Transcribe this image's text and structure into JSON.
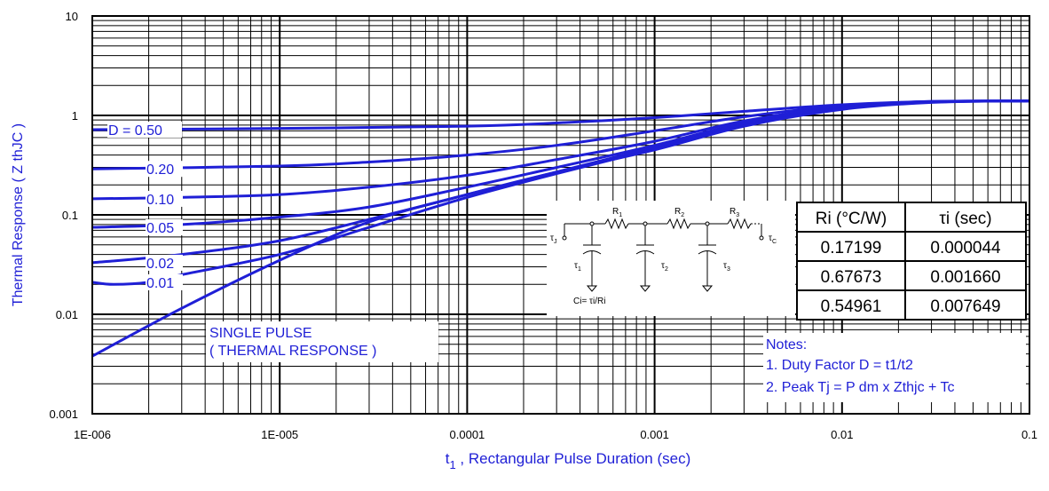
{
  "chart_data": {
    "type": "line",
    "x_scale": "log",
    "y_scale": "log",
    "xlim": [
      1e-06,
      0.1
    ],
    "ylim": [
      0.001,
      10
    ],
    "grid": true,
    "xlabel_main": "t",
    "xlabel_sub": "1",
    "xlabel_rest": " , Rectangular Pulse Duration (sec)",
    "ylabel": "Thermal Response ( Z thJC )",
    "x_ticks": [
      {
        "value": 1e-06,
        "label": "1E-006"
      },
      {
        "value": 1e-05,
        "label": "1E-005"
      },
      {
        "value": 0.0001,
        "label": "0.0001"
      },
      {
        "value": 0.001,
        "label": "0.001"
      },
      {
        "value": 0.01,
        "label": "0.01"
      },
      {
        "value": 0.1,
        "label": "0.1"
      }
    ],
    "y_ticks": [
      {
        "value": 10,
        "label": "10"
      },
      {
        "value": 1,
        "label": "1"
      },
      {
        "value": 0.1,
        "label": "0.1"
      },
      {
        "value": 0.01,
        "label": "0.01"
      },
      {
        "value": 0.001,
        "label": "0.001"
      }
    ],
    "series": [
      {
        "name": "D = 0.50",
        "points": [
          [
            1e-06,
            0.72
          ],
          [
            1e-05,
            0.74
          ],
          [
            0.0001,
            0.78
          ],
          [
            0.0003,
            0.84
          ],
          [
            0.001,
            0.95
          ],
          [
            0.003,
            1.1
          ],
          [
            0.01,
            1.28
          ],
          [
            0.03,
            1.38
          ],
          [
            0.1,
            1.4
          ]
        ]
      },
      {
        "name": "0.20",
        "points": [
          [
            1e-06,
            0.29
          ],
          [
            1e-05,
            0.31
          ],
          [
            3e-05,
            0.34
          ],
          [
            0.0001,
            0.4
          ],
          [
            0.0003,
            0.5
          ],
          [
            0.001,
            0.7
          ],
          [
            0.003,
            0.97
          ],
          [
            0.01,
            1.25
          ],
          [
            0.03,
            1.38
          ],
          [
            0.1,
            1.4
          ]
        ]
      },
      {
        "name": "0.10",
        "points": [
          [
            1e-06,
            0.145
          ],
          [
            3e-06,
            0.15
          ],
          [
            1e-05,
            0.16
          ],
          [
            3e-05,
            0.19
          ],
          [
            0.0001,
            0.25
          ],
          [
            0.0003,
            0.36
          ],
          [
            0.001,
            0.55
          ],
          [
            0.003,
            0.88
          ],
          [
            0.01,
            1.22
          ],
          [
            0.03,
            1.37
          ],
          [
            0.1,
            1.4
          ]
        ]
      },
      {
        "name": "0.05",
        "points": [
          [
            1e-06,
            0.075
          ],
          [
            3e-06,
            0.08
          ],
          [
            1e-05,
            0.095
          ],
          [
            3e-05,
            0.12
          ],
          [
            0.0001,
            0.19
          ],
          [
            0.0003,
            0.3
          ],
          [
            0.001,
            0.5
          ],
          [
            0.003,
            0.84
          ],
          [
            0.01,
            1.2
          ],
          [
            0.03,
            1.37
          ],
          [
            0.1,
            1.4
          ]
        ]
      },
      {
        "name": "0.02",
        "points": [
          [
            1e-06,
            0.033
          ],
          [
            3e-06,
            0.04
          ],
          [
            1e-05,
            0.055
          ],
          [
            3e-05,
            0.09
          ],
          [
            0.0001,
            0.16
          ],
          [
            0.0003,
            0.27
          ],
          [
            0.001,
            0.48
          ],
          [
            0.003,
            0.82
          ],
          [
            0.01,
            1.18
          ],
          [
            0.03,
            1.36
          ],
          [
            0.1,
            1.4
          ]
        ]
      },
      {
        "name": "0.01",
        "points": [
          [
            1e-06,
            0.021
          ],
          [
            1.3e-06,
            0.02
          ],
          [
            2e-06,
            0.021
          ],
          [
            3e-06,
            0.025
          ],
          [
            1e-05,
            0.04
          ],
          [
            3e-05,
            0.075
          ],
          [
            0.0001,
            0.15
          ],
          [
            0.0003,
            0.26
          ],
          [
            0.001,
            0.46
          ],
          [
            0.003,
            0.8
          ],
          [
            0.01,
            1.17
          ],
          [
            0.03,
            1.36
          ],
          [
            0.1,
            1.4
          ]
        ]
      },
      {
        "name": "SINGLE PULSE",
        "points": [
          [
            1e-06,
            0.0038
          ],
          [
            3e-06,
            0.0115
          ],
          [
            1e-05,
            0.035
          ],
          [
            3e-05,
            0.085
          ],
          [
            0.0001,
            0.16
          ],
          [
            0.0003,
            0.27
          ],
          [
            0.001,
            0.45
          ],
          [
            0.003,
            0.78
          ],
          [
            0.01,
            1.15
          ],
          [
            0.03,
            1.35
          ],
          [
            0.1,
            1.4
          ]
        ]
      }
    ],
    "annotations": {
      "single_pulse_line1": "SINGLE PULSE",
      "single_pulse_line2": "( THERMAL RESPONSE )",
      "notes_title": "Notes:",
      "note1": "1. Duty Factor D = t1/t2",
      "note2": "2. Peak Tj = P dm x Zthjc + Tc"
    },
    "table": {
      "headers": [
        "Ri (°C/W)",
        "τi (sec)"
      ],
      "rows": [
        [
          "0.17199",
          "0.000044"
        ],
        [
          "0.67673",
          "0.001660"
        ],
        [
          "0.54961",
          "0.007649"
        ]
      ]
    },
    "circuit": {
      "tau_j": "τ",
      "tau_j_sub": "J",
      "tau_c": "τ",
      "tau_c_sub": "C",
      "r1": "R",
      "r1_sub": "1",
      "r2": "R",
      "r2_sub": "2",
      "r3": "R",
      "r3_sub": "3",
      "t1": "τ",
      "t1_sub": "1",
      "t2": "τ",
      "t2_sub": "2",
      "t3": "τ",
      "t3_sub": "3",
      "ci": "Ci= τi/Ri"
    },
    "colors": {
      "series": "#1f1fd6",
      "grid": "#000000",
      "label": "#1f1fd6"
    }
  }
}
